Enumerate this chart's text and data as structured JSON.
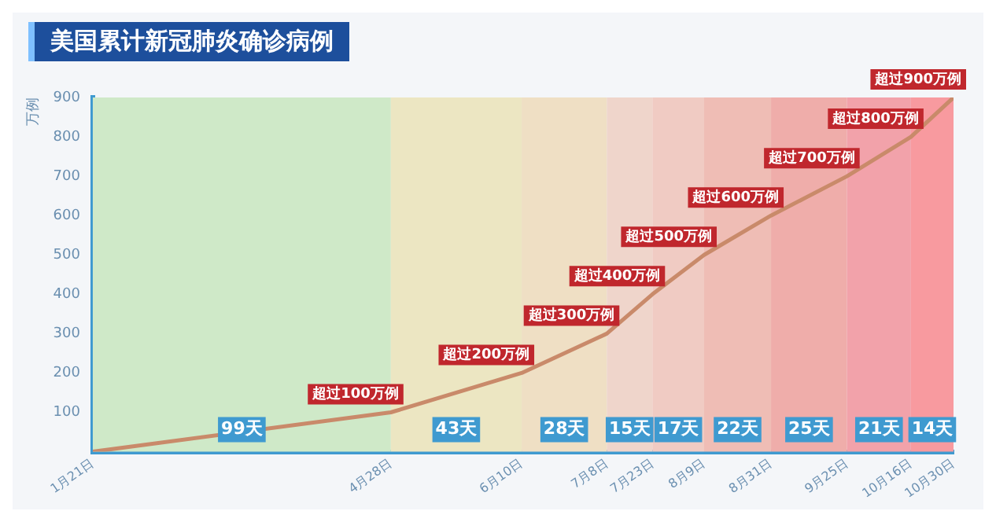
{
  "chart_data": {
    "type": "line",
    "title": "美国累计新冠肺炎确诊病例",
    "ylabel": "万例",
    "x": [
      "--01-21",
      "--04-28",
      "--06-10",
      "--07-08",
      "--07-23",
      "--08-09",
      "--08-31",
      "--09-25",
      "--10-16",
      "--10-30"
    ],
    "series": [
      {
        "color": "#c98a6a",
        "values": [
          0,
          100,
          200,
          300,
          400,
          500,
          600,
          700,
          800,
          900
        ]
      }
    ],
    "xlim": [
      "--01-21",
      "--10-30"
    ],
    "xticks": [
      {
        "value": "--01-21",
        "label": "1月21日"
      },
      {
        "value": "--04-28",
        "label": "4月28日"
      },
      {
        "value": "--06-10",
        "label": "6月10日"
      },
      {
        "value": "--07-08",
        "label": "7月8日"
      },
      {
        "value": "--07-23",
        "label": "7月23日"
      },
      {
        "value": "--08-09",
        "label": "8月9日"
      },
      {
        "value": "--08-31",
        "label": "8月31日"
      },
      {
        "value": "--09-25",
        "label": "9月25日"
      },
      {
        "value": "--10-16",
        "label": "10月16日"
      },
      {
        "value": "--10-30",
        "label": "10月30日"
      }
    ],
    "ylim": [
      0,
      900
    ],
    "yticks": [
      100,
      200,
      300,
      400,
      500,
      600,
      700,
      800,
      900
    ],
    "grid": false,
    "legend": false,
    "marker": "none",
    "line_style": "solid",
    "bands": [
      {
        "axis": "x",
        "from": "--01-21",
        "to": "--04-28",
        "label": "99天",
        "color": "#cfe9c8"
      },
      {
        "axis": "x",
        "from": "--04-28",
        "to": "--06-10",
        "label": "43天",
        "color": "#ece6c2"
      },
      {
        "axis": "x",
        "from": "--06-10",
        "to": "--07-08",
        "label": "28天",
        "color": "#efdfc4"
      },
      {
        "axis": "x",
        "from": "--07-08",
        "to": "--07-23",
        "label": "15天",
        "color": "#efd5cb"
      },
      {
        "axis": "x",
        "from": "--07-23",
        "to": "--08-09",
        "label": "17天",
        "color": "#f0cbc3"
      },
      {
        "axis": "x",
        "from": "--08-09",
        "to": "--08-31",
        "label": "22天",
        "color": "#efbdb5"
      },
      {
        "axis": "x",
        "from": "--08-31",
        "to": "--09-25",
        "label": "25天",
        "color": "#efadaa"
      },
      {
        "axis": "x",
        "from": "--09-25",
        "to": "--10-16",
        "label": "21天",
        "color": "#f2a2aa"
      },
      {
        "axis": "x",
        "from": "--10-16",
        "to": "--10-30",
        "label": "14天",
        "color": "#f89a9f"
      }
    ],
    "annotations": [
      {
        "text": "超过100万例",
        "x": "--04-28",
        "y": 100
      },
      {
        "text": "超过200万例",
        "x": "--06-10",
        "y": 200
      },
      {
        "text": "超过300万例",
        "x": "--07-08",
        "y": 300
      },
      {
        "text": "超过400万例",
        "x": "--07-23",
        "y": 400
      },
      {
        "text": "超过500万例",
        "x": "--08-09",
        "y": 500
      },
      {
        "text": "超过600万例",
        "x": "--08-31",
        "y": 600
      },
      {
        "text": "超过700万例",
        "x": "--09-25",
        "y": 700
      },
      {
        "text": "超过800万例",
        "x": "--10-16",
        "y": 800
      },
      {
        "text": "超过900万例",
        "x": "--10-30",
        "y": 900
      }
    ]
  }
}
